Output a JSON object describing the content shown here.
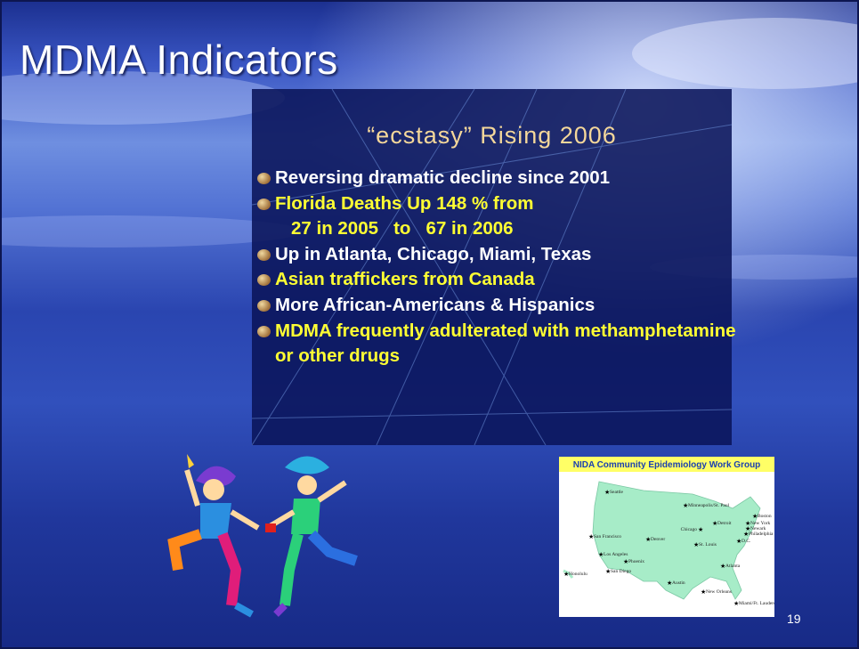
{
  "title": "MDMA Indicators",
  "box": {
    "heading": "“ecstasy” Rising 2006",
    "bullets": [
      {
        "text": "Reversing dramatic decline since 2001",
        "color": "white"
      },
      {
        "text": "Florida Deaths Up 148 % from",
        "color": "yellow"
      },
      {
        "text": "27 in 2005   to   67 in 2006",
        "color": "yellow",
        "continuation": true
      },
      {
        "text": "Up in Atlanta, Chicago, Miami, Texas",
        "color": "white"
      },
      {
        "text": "Asian traffickers from Canada",
        "color": "yellow"
      },
      {
        "text": "More African-Americans & Hispanics",
        "color": "white"
      },
      {
        "text": "MDMA frequently adulterated with methamphetamine or other drugs",
        "color": "yellow"
      }
    ]
  },
  "map": {
    "title": "NIDA Community Epidemiology Work Group",
    "cities": [
      "Seattle",
      "Minneapolis/St. Paul",
      "Boston",
      "New York",
      "Newark",
      "Philadelphia",
      "Detroit",
      "Chicago",
      "D.C.",
      "San Francisco",
      "Denver",
      "St. Louis",
      "Los Angeles",
      "Phoenix",
      "San Diego",
      "Atlanta",
      "Honolulu",
      "Austin",
      "New Orleans",
      "Miami/Ft. Lauderdale"
    ]
  },
  "page_number": "19"
}
